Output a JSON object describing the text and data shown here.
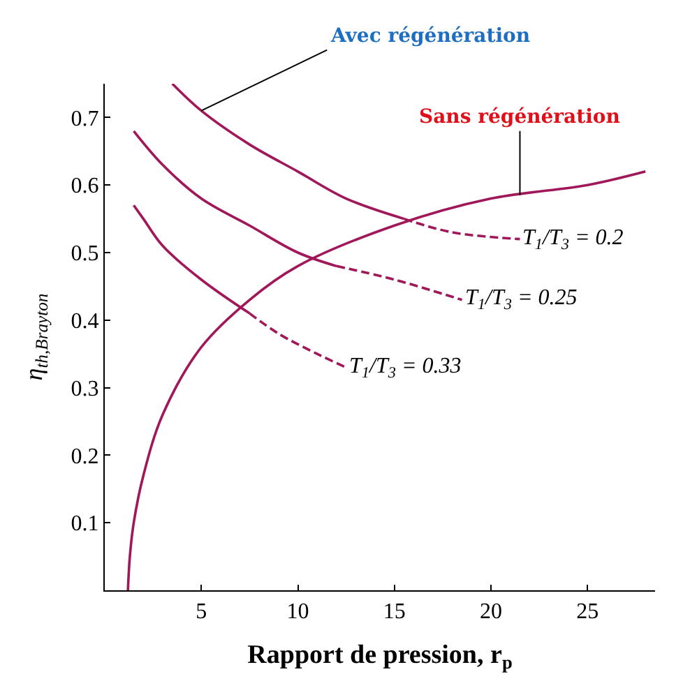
{
  "chart_data": {
    "type": "line",
    "xlabel": "Rapport de pression, r$_{p}$",
    "ylabel": "η$_{th,Brayton}$",
    "xlim": [
      0,
      28.5
    ],
    "xticks": [
      5,
      10,
      15,
      20,
      25
    ],
    "ylim": [
      0,
      0.75
    ],
    "yticks": [
      0.1,
      0.2,
      0.3,
      0.4,
      0.5,
      0.6,
      0.7
    ],
    "marker": "none",
    "series": [
      {
        "color": "#a0185a",
        "line_style": "solid",
        "x": [
          1.2,
          1.3,
          1.5,
          2,
          3,
          5,
          7.5,
          10,
          15,
          20,
          25,
          28
        ],
        "values": [
          0,
          0.05,
          0.1,
          0.17,
          0.26,
          0.36,
          0.43,
          0.48,
          0.54,
          0.58,
          0.6,
          0.62
        ]
      },
      {
        "color": "#a0185a",
        "line_style": "solid",
        "x": [
          3.5,
          5,
          7.5,
          10,
          12.5,
          15.5
        ],
        "values": [
          0.75,
          0.71,
          0.66,
          0.62,
          0.58,
          0.55
        ]
      },
      {
        "color": "#a0185a",
        "line_style": "dashed",
        "x": [
          15.5,
          18,
          21.5
        ],
        "values": [
          0.55,
          0.53,
          0.52
        ]
      },
      {
        "color": "#a0185a",
        "line_style": "solid",
        "x": [
          1.5,
          3,
          5,
          7.5,
          10,
          12
        ],
        "values": [
          0.68,
          0.63,
          0.58,
          0.54,
          0.5,
          0.48
        ]
      },
      {
        "color": "#a0185a",
        "line_style": "dashed",
        "x": [
          12,
          15,
          18.5
        ],
        "values": [
          0.48,
          0.46,
          0.43
        ]
      },
      {
        "color": "#a0185a",
        "line_style": "solid",
        "x": [
          1.5,
          2,
          3,
          5,
          7.5
        ],
        "values": [
          0.57,
          0.55,
          0.51,
          0.46,
          0.41
        ]
      },
      {
        "color": "#a0185a",
        "line_style": "dashed",
        "x": [
          7.5,
          9,
          11,
          12.5
        ],
        "values": [
          0.41,
          0.38,
          0.35,
          0.33
        ]
      }
    ],
    "annotations": [
      {
        "text": "T$_{1}$/T$_{3}$ = 0.2",
        "x": 21.5,
        "y": 0.52
      },
      {
        "text": "T$_{1}$/T$_{3}$ = 0.25",
        "x": 18.5,
        "y": 0.43
      },
      {
        "text": "T$_{1}$/T$_{3}$ = 0.33",
        "x": 12.5,
        "y": 0.33
      },
      {
        "text": "Sans régénération",
        "x": 21.5,
        "y": 0.585
      },
      {
        "text": "Avec régénération",
        "x": 5,
        "y": 0.71
      }
    ]
  }
}
